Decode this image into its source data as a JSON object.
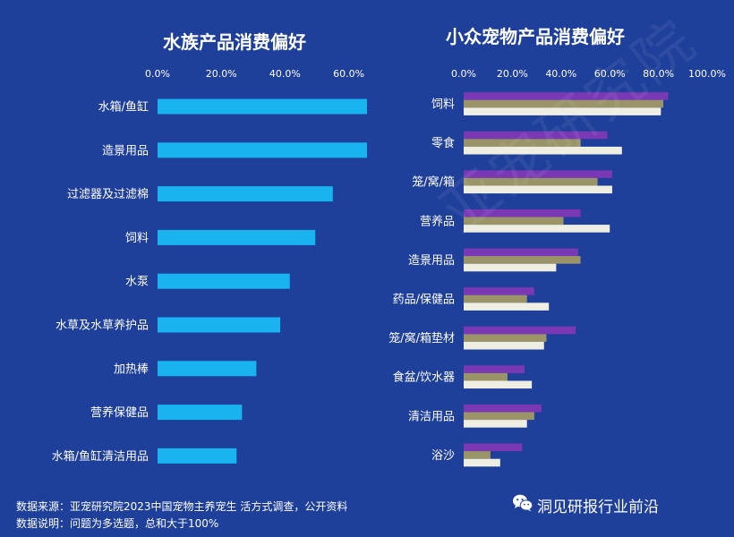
{
  "chart_data": [
    {
      "type": "bar",
      "orientation": "horizontal",
      "title": "水族产品消费偏好",
      "xlim": [
        0,
        80
      ],
      "tick_labels": [
        "0.0%",
        "20.0%",
        "40.0%",
        "60.0%",
        "80.0%"
      ],
      "tick_values": [
        0,
        20,
        40,
        60,
        80
      ],
      "axis_position": "top",
      "categories": [
        "水箱/鱼缸",
        "造景用品",
        "过滤器及过滤棉",
        "饲料",
        "水泵",
        "水草及水草养护品",
        "加热棒",
        "营养保健品",
        "水箱/鱼缸清洁用品"
      ],
      "series": [
        {
          "values": [
            73.5,
            66.8,
            55.0,
            49.5,
            41.5,
            38.5,
            31.0,
            26.5,
            24.8
          ]
        }
      ],
      "colors": [
        "#19b4f0"
      ]
    },
    {
      "type": "bar",
      "orientation": "horizontal",
      "title": "小众宠物产品消费偏好",
      "xlim": [
        0,
        100
      ],
      "tick_labels": [
        "0.0%",
        "20.0%",
        "40.0%",
        "60.0%",
        "80.0%",
        "100.0%"
      ],
      "tick_values": [
        0,
        20,
        40,
        60,
        80,
        100
      ],
      "axis_position": "top",
      "categories": [
        "饲料",
        "零食",
        "笼/窝/箱",
        "营养品",
        "造景用品",
        "药品/保健品",
        "笼/窝/箱垫材",
        "食盆/饮水器",
        "清洁用品",
        "浴沙"
      ],
      "series": [
        {
          "values": [
            84,
            59,
            61,
            48,
            47,
            29,
            46,
            25,
            32,
            24
          ]
        },
        {
          "values": [
            82,
            48,
            55,
            41,
            48,
            26,
            34,
            18,
            29,
            11
          ]
        },
        {
          "values": [
            81,
            65,
            61,
            60,
            38,
            35,
            33,
            28,
            26,
            15
          ]
        }
      ],
      "colors": [
        "#7a38b5",
        "#9a9468",
        "#efeee2"
      ]
    }
  ],
  "footer": {
    "source": "数据来源：亚宠研究院2023中国宠物主养宠生 活方式调查，公开资料",
    "note": "数据说明：问题为多选题，总和大于100%"
  },
  "watermark": {
    "label": "洞见研报行业前沿",
    "icon": "wechat-icon",
    "background_text": "亚宠研究院"
  }
}
